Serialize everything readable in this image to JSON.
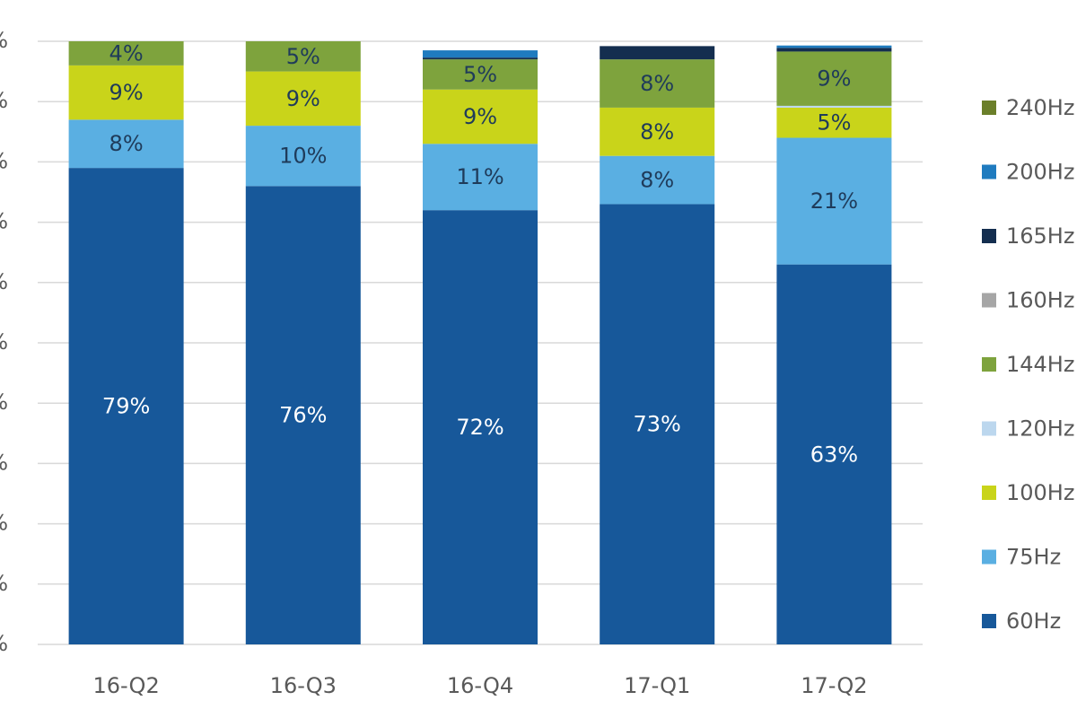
{
  "chart_data": {
    "type": "bar",
    "stacked": true,
    "categories": [
      "16-Q2",
      "16-Q3",
      "16-Q4",
      "17-Q1",
      "17-Q2"
    ],
    "ylim": [
      0,
      100
    ],
    "y_ticks": [
      "%",
      "%",
      "%",
      "%",
      "%",
      "%",
      "%",
      "%",
      "%",
      "%",
      "%"
    ],
    "legend_position": "right",
    "grid": true,
    "series": [
      {
        "name": "60Hz",
        "color": "#17589a",
        "values": [
          79,
          76,
          72,
          73,
          63
        ],
        "labels": [
          "79%",
          "76%",
          "72%",
          "73%",
          "63%"
        ],
        "label_color": "#ffffff"
      },
      {
        "name": "75Hz",
        "color": "#5aafe2",
        "values": [
          8,
          10,
          11,
          8,
          21
        ],
        "labels": [
          "8%",
          "10%",
          "11%",
          "8%",
          "21%"
        ],
        "label_color": "#1f3b5a"
      },
      {
        "name": "100Hz",
        "color": "#c9d41a",
        "values": [
          9,
          9,
          9,
          8,
          5
        ],
        "labels": [
          "9%",
          "9%",
          "9%",
          "8%",
          "5%"
        ],
        "label_color": "#1f3b5a"
      },
      {
        "name": "120Hz",
        "color": "#bcd7ee",
        "values": [
          0,
          0,
          0,
          0,
          0.3
        ],
        "labels": [
          "",
          "",
          "",
          "",
          ""
        ],
        "label_color": "#1f3b5a"
      },
      {
        "name": "144Hz",
        "color": "#7ea33d",
        "values": [
          4,
          5,
          5,
          8,
          9
        ],
        "labels": [
          "4%",
          "5%",
          "5%",
          "8%",
          "9%"
        ],
        "label_color": "#1f3b5a"
      },
      {
        "name": "160Hz",
        "color": "#a6a6a6",
        "values": [
          0,
          0,
          0,
          0,
          0
        ],
        "labels": [
          "",
          "",
          "",
          "",
          ""
        ],
        "label_color": "#1f3b5a"
      },
      {
        "name": "165Hz",
        "color": "#142e4f",
        "values": [
          0,
          0.3,
          0.3,
          2.2,
          0.6
        ],
        "labels": [
          "",
          "",
          "",
          "",
          ""
        ],
        "label_color": "#1f3b5a"
      },
      {
        "name": "200Hz",
        "color": "#1f7bbf",
        "values": [
          0,
          0.5,
          1.2,
          0,
          0.4
        ],
        "labels": [
          "",
          "",
          "",
          "",
          ""
        ],
        "label_color": "#1f3b5a"
      },
      {
        "name": "240Hz",
        "color": "#6b7f2a",
        "values": [
          0,
          0,
          0,
          0,
          0
        ],
        "labels": [
          "",
          "",
          "",
          "",
          ""
        ],
        "label_color": "#1f3b5a"
      }
    ],
    "legend_order": [
      "240Hz",
      "200Hz",
      "165Hz",
      "160Hz",
      "144Hz",
      "120Hz",
      "100Hz",
      "75Hz",
      "60Hz"
    ]
  }
}
